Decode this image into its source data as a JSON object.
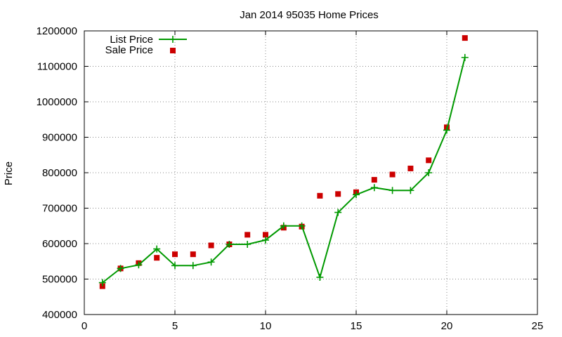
{
  "chart_data": {
    "type": "line",
    "title": "Jan 2014 95035 Home Prices",
    "xlabel": "",
    "ylabel": "Price",
    "xlim": [
      0,
      25
    ],
    "ylim": [
      400000,
      1200000
    ],
    "xticks": [
      0,
      5,
      10,
      15,
      20,
      25
    ],
    "yticks": [
      400000,
      500000,
      600000,
      700000,
      800000,
      900000,
      1000000,
      1100000,
      1200000
    ],
    "grid": true,
    "legend_position": "top-left",
    "series": [
      {
        "name": "List Price",
        "style": "line-with-plus-markers",
        "color": "#009900",
        "x": [
          1,
          2,
          3,
          4,
          5,
          6,
          7,
          8,
          9,
          10,
          11,
          12,
          13,
          14,
          15,
          16,
          17,
          18,
          19,
          20,
          21
        ],
        "y": [
          490000,
          530000,
          540000,
          585000,
          538000,
          538000,
          548000,
          598000,
          598000,
          610000,
          650000,
          650000,
          505000,
          688000,
          738000,
          758000,
          750000,
          750000,
          800000,
          920000,
          1125000
        ]
      },
      {
        "name": "Sale Price",
        "style": "square-markers",
        "color": "#cc0000",
        "x": [
          1,
          2,
          3,
          4,
          5,
          6,
          7,
          8,
          9,
          10,
          11,
          12,
          13,
          14,
          15,
          16,
          17,
          18,
          19,
          20,
          21
        ],
        "y": [
          480000,
          530000,
          545000,
          560000,
          570000,
          570000,
          595000,
          598000,
          625000,
          625000,
          645000,
          648000,
          735000,
          740000,
          745000,
          780000,
          795000,
          812000,
          835000,
          928000,
          1180000
        ]
      }
    ]
  }
}
